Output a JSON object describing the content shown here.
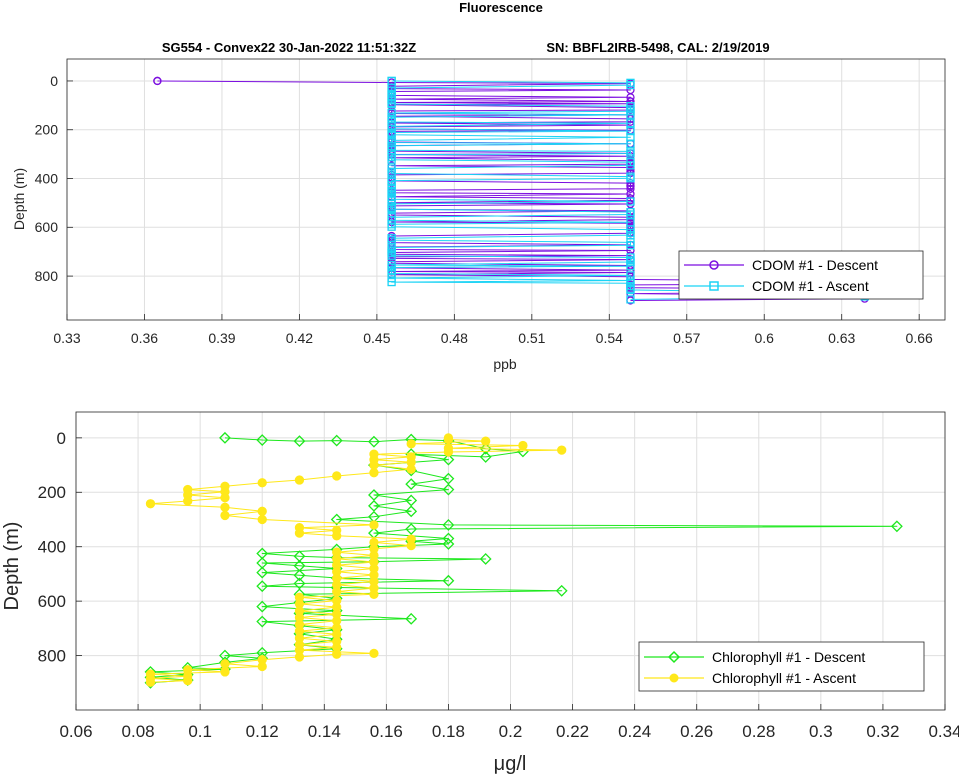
{
  "figure": {
    "title": "Fluorescence",
    "subtitle_left": "SG554 - Convex22 30-Jan-2022 11:51:32Z",
    "subtitle_right": "SN: BBFL2IRB-5498, CAL: 2/19/2019"
  },
  "chart_data": [
    {
      "type": "line",
      "xlabel": "ppb",
      "ylabel": "Depth (m)",
      "xlim": [
        0.33,
        0.67
      ],
      "ylim": [
        0,
        1000
      ],
      "y_reversed": true,
      "grid": true,
      "xticks": [
        0.33,
        0.36,
        0.39,
        0.42,
        0.45,
        0.48,
        0.51,
        0.54,
        0.57,
        0.6,
        0.63,
        0.66
      ],
      "xtick_labels": [
        "0.33",
        "0.36",
        "0.39",
        "0.42",
        "0.45",
        "0.48",
        "0.51",
        "0.54",
        "0.57",
        "0.6",
        "0.63",
        "0.66"
      ],
      "yticks": [
        0,
        200,
        400,
        600,
        800
      ],
      "ytick_labels": [
        "0",
        "200",
        "400",
        "600",
        "800"
      ],
      "legend_position": "right",
      "series": [
        {
          "name": "CDOM #1 - Descent",
          "color": "#7c0fe0",
          "marker": "circle",
          "levels": [
            0.365,
            0.4557,
            0.5482,
            0.6389
          ],
          "depth_start": 0,
          "depth_step": 8,
          "depth_end": 900,
          "transition_depths": [
            0,
            6,
            820
          ],
          "switch_prob": 0.55,
          "seed": 11
        },
        {
          "name": "CDOM #1 - Ascent",
          "color": "#1bd3f5",
          "marker": "square",
          "levels": [
            0.4557,
            0.5482,
            0.6389
          ],
          "depth_start": 0,
          "depth_step": 9,
          "depth_end": 900,
          "transition_depths": [
            0,
            835
          ],
          "switch_prob": 0.55,
          "seed": 23
        }
      ]
    },
    {
      "type": "line",
      "xlabel": "μg/l",
      "ylabel": "Depth (m)",
      "xlim": [
        0.06,
        0.34
      ],
      "ylim": [
        0,
        1000
      ],
      "y_reversed": true,
      "grid": true,
      "xticks": [
        0.06,
        0.08,
        0.1,
        0.12,
        0.14,
        0.16,
        0.18,
        0.2,
        0.22,
        0.24,
        0.26,
        0.28,
        0.3,
        0.32,
        0.34
      ],
      "xtick_labels": [
        "0.06",
        "0.08",
        "0.1",
        "0.12",
        "0.14",
        "0.16",
        "0.18",
        "0.2",
        "0.22",
        "0.24",
        "0.26",
        "0.28",
        "0.3",
        "0.32",
        "0.34"
      ],
      "yticks": [
        0,
        200,
        400,
        600,
        800
      ],
      "ytick_labels": [
        "0",
        "200",
        "400",
        "600",
        "800"
      ],
      "legend_position": "bottom-right",
      "series": [
        {
          "name": "Chlorophyll #1 - Descent",
          "color": "#1ee81e",
          "marker": "diamond",
          "points": [
            [
              0.108,
              0
            ],
            [
              0.12,
              8
            ],
            [
              0.132,
              12
            ],
            [
              0.144,
              10
            ],
            [
              0.156,
              14
            ],
            [
              0.168,
              6
            ],
            [
              0.18,
              10
            ],
            [
              0.192,
              40
            ],
            [
              0.204,
              50
            ],
            [
              0.192,
              70
            ],
            [
              0.168,
              60
            ],
            [
              0.18,
              80
            ],
            [
              0.156,
              100
            ],
            [
              0.168,
              120
            ],
            [
              0.18,
              150
            ],
            [
              0.168,
              170
            ],
            [
              0.18,
              190
            ],
            [
              0.156,
              210
            ],
            [
              0.168,
              230
            ],
            [
              0.156,
              250
            ],
            [
              0.168,
              270
            ],
            [
              0.156,
              290
            ],
            [
              0.144,
              300
            ],
            [
              0.18,
              320
            ],
            [
              0.3245,
              325
            ],
            [
              0.168,
              335
            ],
            [
              0.156,
              350
            ],
            [
              0.18,
              370
            ],
            [
              0.168,
              380
            ],
            [
              0.18,
              390
            ],
            [
              0.156,
              400
            ],
            [
              0.144,
              410
            ],
            [
              0.12,
              425
            ],
            [
              0.132,
              435
            ],
            [
              0.144,
              440
            ],
            [
              0.192,
              445
            ],
            [
              0.156,
              455
            ],
            [
              0.12,
              460
            ],
            [
              0.132,
              470
            ],
            [
              0.144,
              480
            ],
            [
              0.12,
              495
            ],
            [
              0.132,
              505
            ],
            [
              0.144,
              515
            ],
            [
              0.18,
              525
            ],
            [
              0.132,
              535
            ],
            [
              0.12,
              545
            ],
            [
              0.144,
              550
            ],
            [
              0.2165,
              562
            ],
            [
              0.132,
              575
            ],
            [
              0.144,
              590
            ],
            [
              0.132,
              605
            ],
            [
              0.12,
              620
            ],
            [
              0.144,
              635
            ],
            [
              0.132,
              645
            ],
            [
              0.168,
              665
            ],
            [
              0.12,
              675
            ],
            [
              0.132,
              690
            ],
            [
              0.144,
              705
            ],
            [
              0.132,
              720
            ],
            [
              0.144,
              740
            ],
            [
              0.132,
              760
            ],
            [
              0.144,
              775
            ],
            [
              0.12,
              790
            ],
            [
              0.108,
              800
            ],
            [
              0.12,
              810
            ],
            [
              0.108,
              825
            ],
            [
              0.096,
              845
            ],
            [
              0.108,
              850
            ],
            [
              0.084,
              860
            ],
            [
              0.096,
              870
            ],
            [
              0.084,
              880
            ],
            [
              0.096,
              890
            ],
            [
              0.084,
              900
            ]
          ]
        },
        {
          "name": "Chlorophyll #1 - Ascent",
          "color": "#ffe81a",
          "marker": "circle",
          "points": [
            [
              0.084,
              898
            ],
            [
              0.096,
              892
            ],
            [
              0.084,
              884
            ],
            [
              0.096,
              876
            ],
            [
              0.084,
              868
            ],
            [
              0.108,
              860
            ],
            [
              0.096,
              852
            ],
            [
              0.12,
              840
            ],
            [
              0.108,
              830
            ],
            [
              0.12,
              815
            ],
            [
              0.132,
              805
            ],
            [
              0.144,
              795
            ],
            [
              0.156,
              792
            ],
            [
              0.132,
              780
            ],
            [
              0.144,
              770
            ],
            [
              0.132,
              760
            ],
            [
              0.144,
              748
            ],
            [
              0.132,
              736
            ],
            [
              0.144,
              722
            ],
            [
              0.132,
              710
            ],
            [
              0.144,
              698
            ],
            [
              0.132,
              686
            ],
            [
              0.144,
              672
            ],
            [
              0.132,
              660
            ],
            [
              0.144,
              648
            ],
            [
              0.132,
              636
            ],
            [
              0.144,
              622
            ],
            [
              0.132,
              610
            ],
            [
              0.144,
              598
            ],
            [
              0.132,
              586
            ],
            [
              0.156,
              575
            ],
            [
              0.144,
              565
            ],
            [
              0.156,
              552
            ],
            [
              0.144,
              540
            ],
            [
              0.156,
              528
            ],
            [
              0.144,
              516
            ],
            [
              0.156,
              504
            ],
            [
              0.144,
              492
            ],
            [
              0.156,
              480
            ],
            [
              0.144,
              468
            ],
            [
              0.156,
              456
            ],
            [
              0.144,
              444
            ],
            [
              0.156,
              432
            ],
            [
              0.144,
              420
            ],
            [
              0.156,
              408
            ],
            [
              0.168,
              396
            ],
            [
              0.156,
              384
            ],
            [
              0.168,
              372
            ],
            [
              0.144,
              360
            ],
            [
              0.132,
              350
            ],
            [
              0.144,
              340
            ],
            [
              0.132,
              330
            ],
            [
              0.156,
              320
            ],
            [
              0.12,
              300
            ],
            [
              0.108,
              285
            ],
            [
              0.12,
              270
            ],
            [
              0.108,
              255
            ],
            [
              0.084,
              242
            ],
            [
              0.096,
              232
            ],
            [
              0.108,
              220
            ],
            [
              0.096,
              210
            ],
            [
              0.108,
              198
            ],
            [
              0.096,
              190
            ],
            [
              0.108,
              178
            ],
            [
              0.12,
              165
            ],
            [
              0.132,
              155
            ],
            [
              0.144,
              140
            ],
            [
              0.156,
              128
            ],
            [
              0.168,
              115
            ],
            [
              0.156,
              100
            ],
            [
              0.168,
              90
            ],
            [
              0.156,
              80
            ],
            [
              0.168,
              70
            ],
            [
              0.156,
              60
            ],
            [
              0.18,
              52
            ],
            [
              0.2165,
              45
            ],
            [
              0.18,
              38
            ],
            [
              0.204,
              28
            ],
            [
              0.168,
              22
            ],
            [
              0.192,
              12
            ],
            [
              0.18,
              6
            ],
            [
              0.18,
              0
            ]
          ]
        }
      ]
    }
  ]
}
